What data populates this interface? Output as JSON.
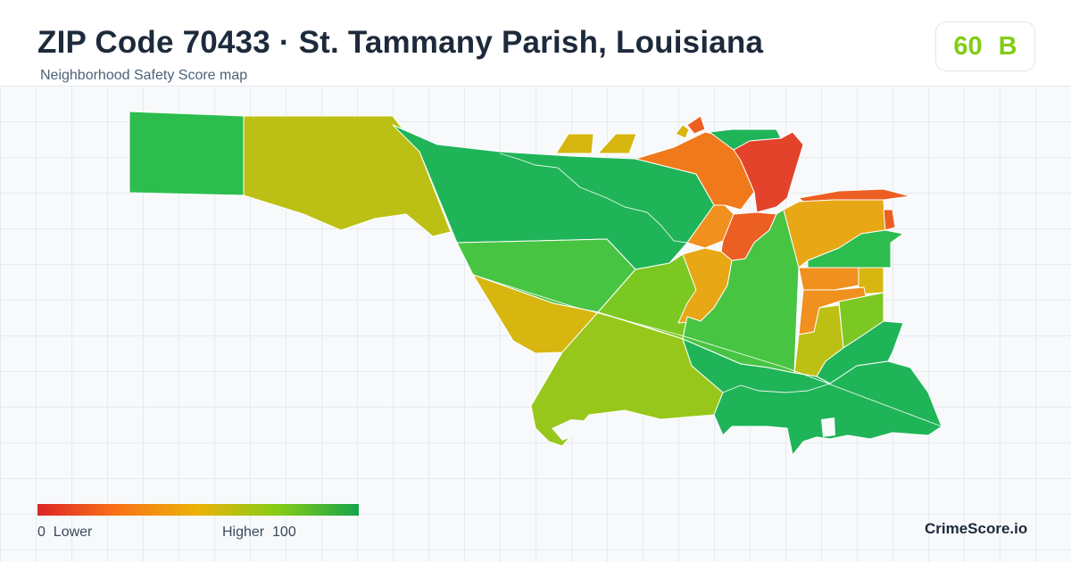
{
  "header": {
    "title": "ZIP Code 70433 · St. Tammany Parish, Louisiana",
    "subtitle": "Neighborhood Safety Score map"
  },
  "score_badge": {
    "score": "60",
    "grade": "B",
    "color": "#84cc16"
  },
  "legend": {
    "min_value": "0",
    "min_label": "Lower",
    "max_label": "Higher",
    "max_value": "100",
    "colors": [
      "#dc2626",
      "#f97316",
      "#eab308",
      "#84cc16",
      "#16a34a"
    ]
  },
  "brand": "CrimeScore.io",
  "map": {
    "fill_palette": {
      "red": "#e2432a",
      "red_orange": "#ec5f22",
      "orange": "#f07a1b",
      "light_orange": "#f0901e",
      "amber": "#e8a714",
      "gold": "#d6b60f",
      "olive": "#bcc014",
      "yellow_green": "#97c71a",
      "light_green": "#7cc822",
      "green": "#48c443",
      "medium_green": "#2dbd4e",
      "dark_green": "#20b458"
    }
  }
}
